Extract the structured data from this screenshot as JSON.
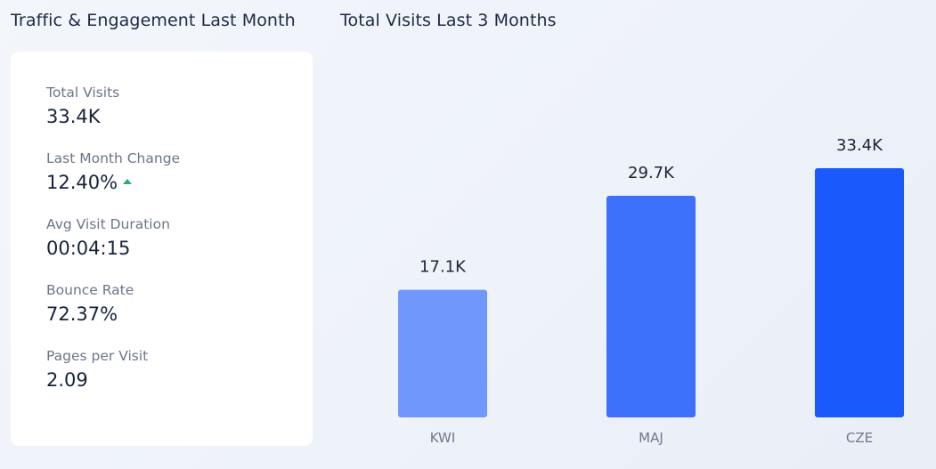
{
  "left_panel": {
    "title": "Traffic & Engagement Last Month",
    "metrics": [
      {
        "label": "Total Visits",
        "value": "33.4K"
      },
      {
        "label": "Last Month Change",
        "value": "12.40%",
        "trend": "up"
      },
      {
        "label": "Avg Visit Duration",
        "value": "00:04:15"
      },
      {
        "label": "Bounce Rate",
        "value": "72.37%"
      },
      {
        "label": "Pages per Visit",
        "value": "2.09"
      }
    ],
    "colors": {
      "trend_up": "#21b07a"
    }
  },
  "right_panel": {
    "title": "Total Visits Last 3 Months"
  },
  "chart_data": {
    "type": "bar",
    "categories": [
      "KWI",
      "MAJ",
      "CZE"
    ],
    "values": [
      17100,
      29700,
      33400
    ],
    "data_labels": [
      "17.1K",
      "29.7K",
      "33.4K"
    ],
    "colors": [
      "#7097fb",
      "#3d70fb",
      "#1a5afc"
    ],
    "ylim": [
      0,
      34000
    ],
    "grid": false,
    "legend": "none"
  }
}
